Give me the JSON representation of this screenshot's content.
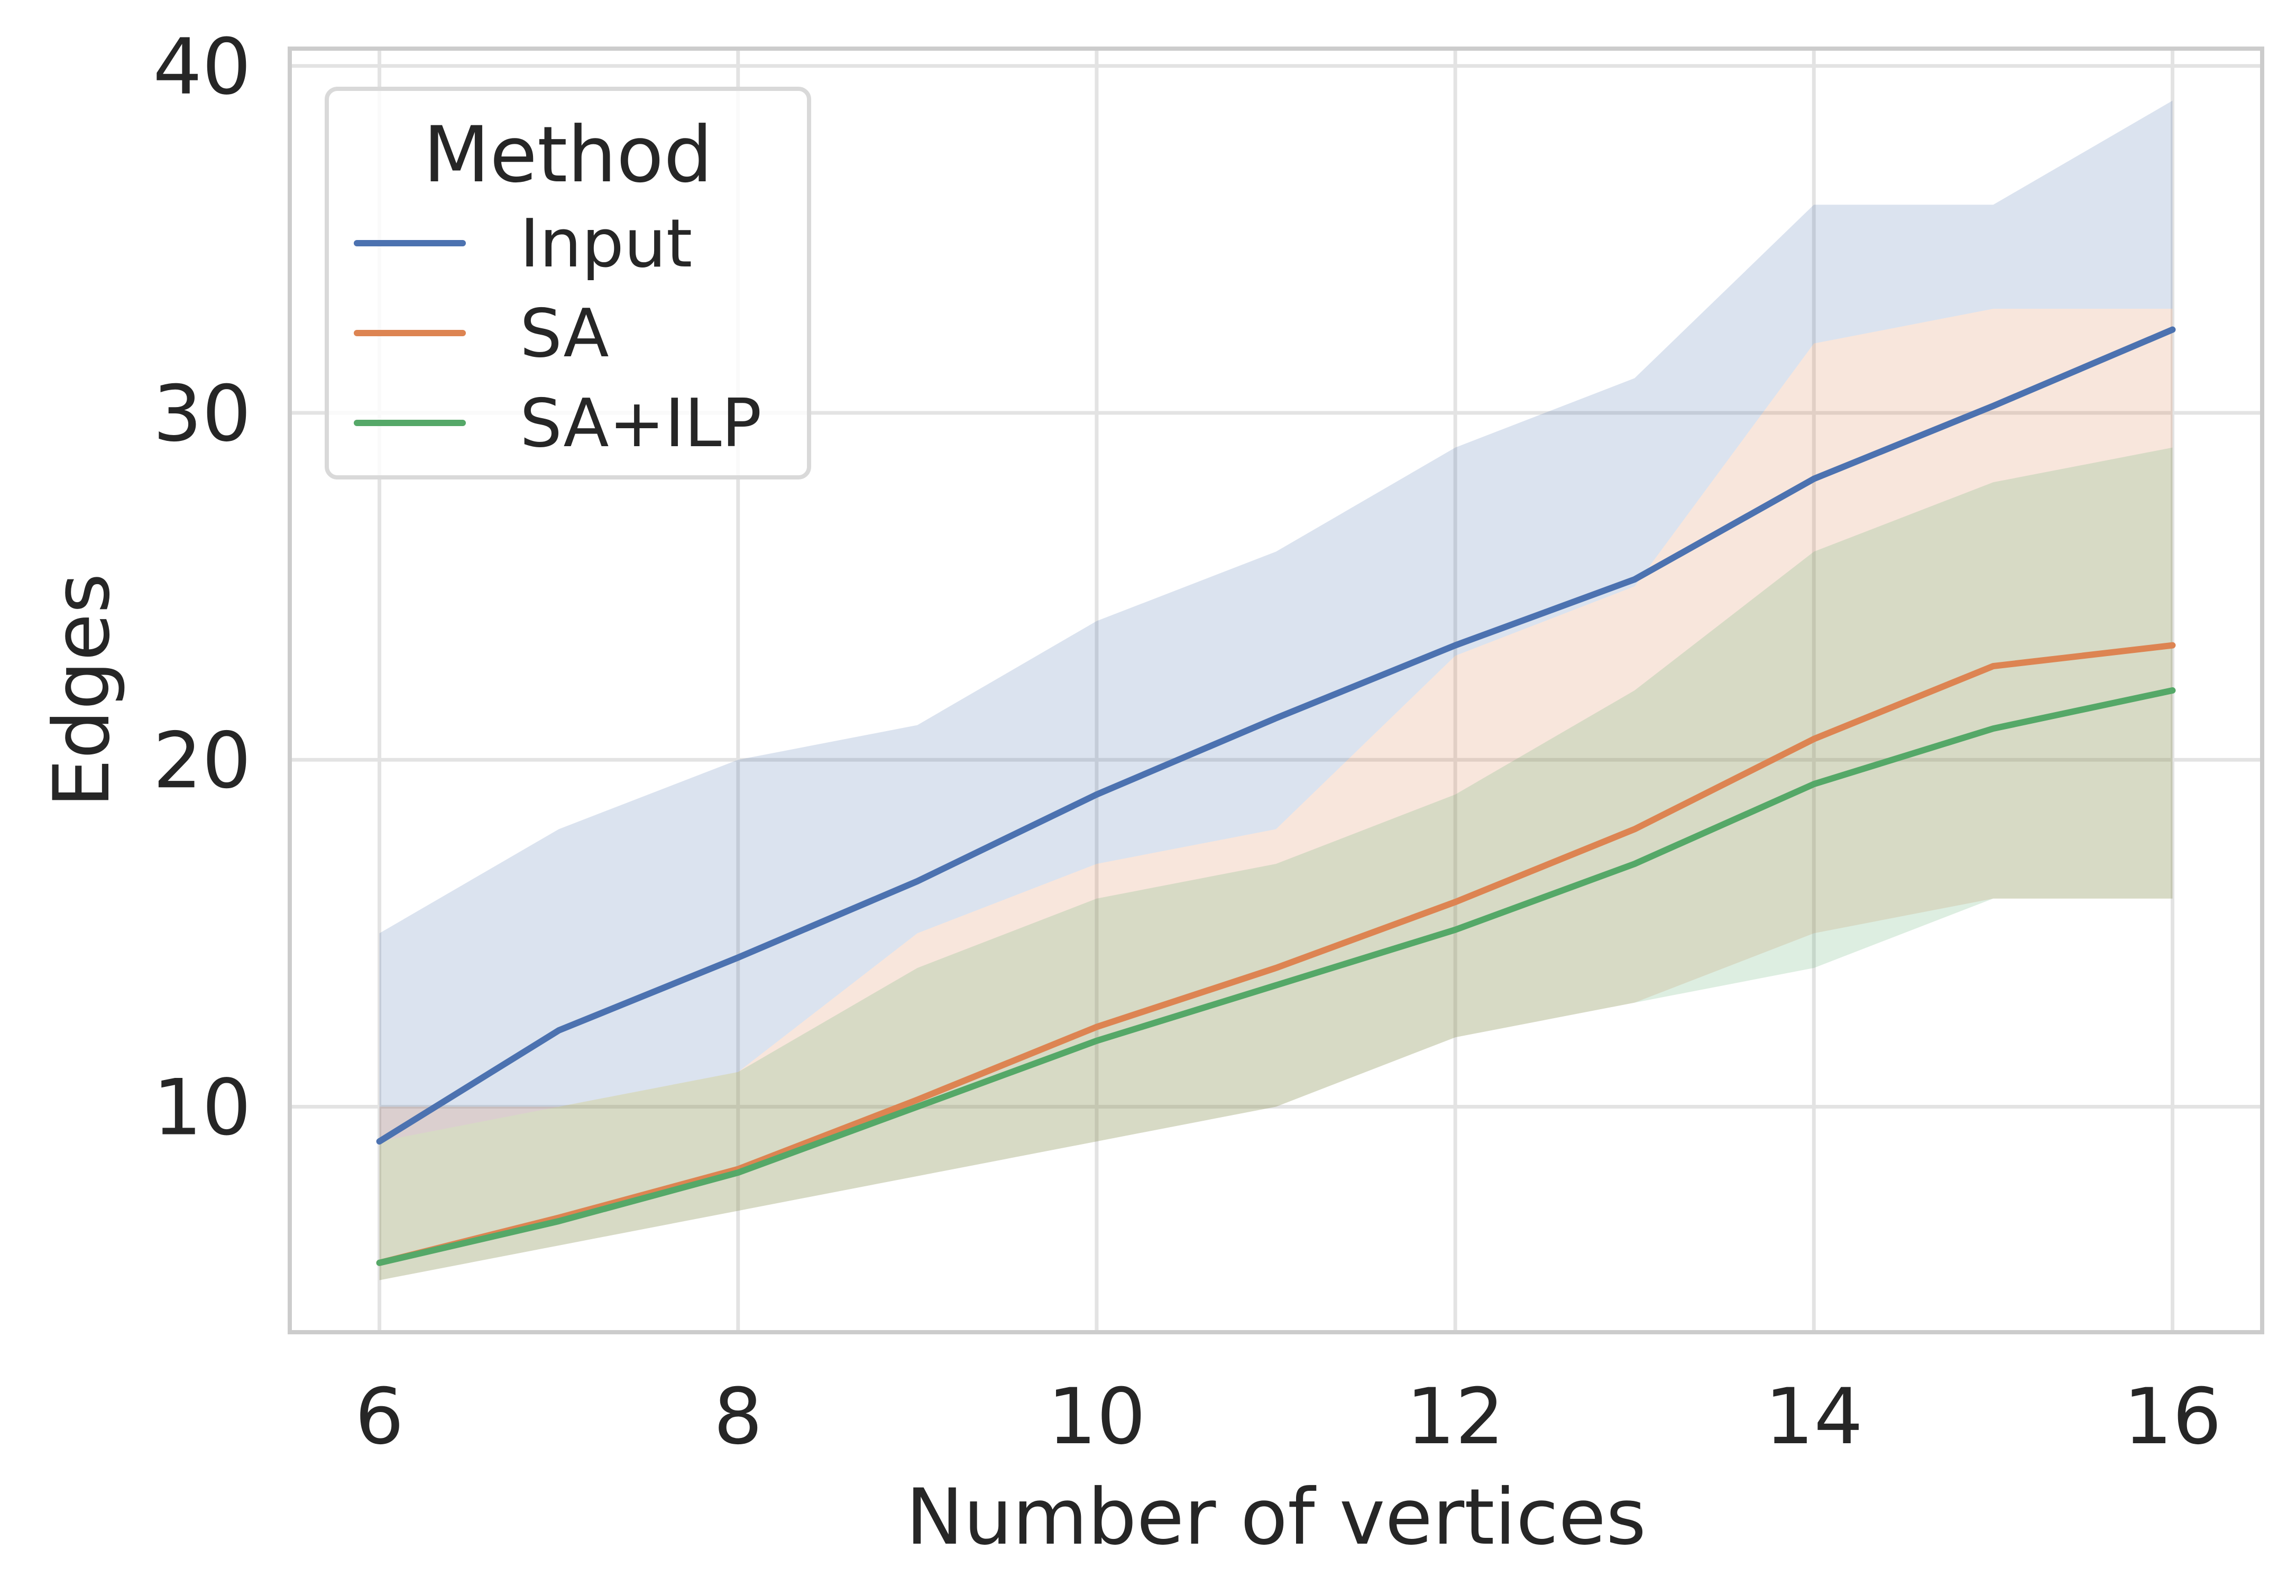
{
  "chart_data": {
    "type": "line",
    "xlabel": "Number of vertices",
    "ylabel": "Edges",
    "x": [
      6,
      7,
      8,
      9,
      10,
      11,
      12,
      13,
      14,
      15,
      16
    ],
    "xlim": [
      5.5,
      16.5
    ],
    "ylim": [
      3.5,
      40.5
    ],
    "xticks": [
      6,
      8,
      10,
      12,
      14,
      16
    ],
    "yticks": [
      10,
      20,
      30,
      40
    ],
    "grid": true,
    "legend": {
      "title": "Method",
      "placement": "top-left"
    },
    "series": [
      {
        "name": "Input",
        "color": "#4c72b0",
        "values": [
          9.0,
          12.2,
          14.3,
          16.5,
          19.0,
          21.2,
          23.3,
          25.2,
          28.1,
          30.2,
          32.4
        ],
        "band_upper": [
          15,
          18,
          20,
          21,
          24,
          26,
          29,
          31,
          36,
          36,
          39
        ],
        "band_lower": [
          9,
          10,
          11,
          15,
          17,
          18,
          23,
          25,
          32,
          33,
          33
        ]
      },
      {
        "name": "SA",
        "color": "#dd8452",
        "values": [
          5.5,
          6.8,
          8.2,
          10.2,
          12.3,
          14.0,
          15.9,
          18.0,
          20.6,
          22.7,
          23.3
        ],
        "band_upper": [
          10,
          10,
          11,
          15,
          17,
          18,
          23,
          25,
          32,
          33,
          33
        ],
        "band_lower": [
          5,
          6,
          7,
          8,
          9,
          10,
          12,
          13,
          15,
          16,
          16
        ]
      },
      {
        "name": "SA+ILP",
        "color": "#55a868",
        "values": [
          5.5,
          6.7,
          8.1,
          10.0,
          11.9,
          13.5,
          15.1,
          17.0,
          19.3,
          20.9,
          22.0
        ],
        "band_upper": [
          9,
          10,
          11,
          14,
          16,
          17,
          19,
          22,
          26,
          28,
          29
        ],
        "band_lower": [
          5,
          6,
          7,
          8,
          9,
          10,
          12,
          13,
          14,
          16,
          16
        ]
      }
    ]
  }
}
